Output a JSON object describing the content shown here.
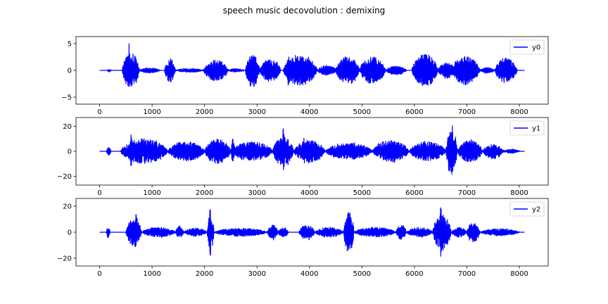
{
  "figure": {
    "title": "speech music decovolution : demixing"
  },
  "chart_data": [
    {
      "type": "line",
      "series": [
        {
          "name": "y0",
          "color": "#0000ff"
        }
      ],
      "x_range": [
        0,
        8100
      ],
      "xlim": [
        -450,
        8550
      ],
      "ylim": [
        -6.3,
        6.3
      ],
      "xticks": [
        0,
        1000,
        2000,
        3000,
        4000,
        5000,
        6000,
        7000,
        8000
      ],
      "yticks": [
        -5,
        0,
        5
      ],
      "legend": "top-right",
      "grid": false,
      "bursts": [
        {
          "x": [
            150,
            220
          ],
          "amp": 0.35
        },
        {
          "x": [
            430,
            760
          ],
          "amp": 3.4,
          "peak": 5.9,
          "peak_at": 560
        },
        {
          "x": [
            760,
            1150
          ],
          "amp": 0.55
        },
        {
          "x": [
            1240,
            1440
          ],
          "amp": 2.3
        },
        {
          "x": [
            1440,
            1980
          ],
          "amp": 0.45
        },
        {
          "x": [
            1980,
            2450
          ],
          "amp": 2.0
        },
        {
          "x": [
            2450,
            2750
          ],
          "amp": 0.4
        },
        {
          "x": [
            2780,
            3050
          ],
          "amp": 3.2
        },
        {
          "x": [
            3050,
            3450
          ],
          "amp": 2.2
        },
        {
          "x": [
            3500,
            4150
          ],
          "amp": 2.9,
          "peak": 3.4,
          "peak_at": 3600
        },
        {
          "x": [
            4150,
            4520
          ],
          "amp": 1.0
        },
        {
          "x": [
            4500,
            4950
          ],
          "amp": 2.7
        },
        {
          "x": [
            4950,
            5450
          ],
          "amp": 2.6
        },
        {
          "x": [
            5450,
            5850
          ],
          "amp": 0.9
        },
        {
          "x": [
            5950,
            6450
          ],
          "amp": 3.1
        },
        {
          "x": [
            6450,
            6780
          ],
          "amp": 1.6
        },
        {
          "x": [
            6700,
            7250
          ],
          "amp": 2.7
        },
        {
          "x": [
            7250,
            7530
          ],
          "amp": 0.6
        },
        {
          "x": [
            7530,
            7960
          ],
          "amp": 2.4
        }
      ]
    },
    {
      "type": "line",
      "series": [
        {
          "name": "y1",
          "color": "#0000ff"
        }
      ],
      "x_range": [
        0,
        8100
      ],
      "xlim": [
        -450,
        8550
      ],
      "ylim": [
        -27,
        27
      ],
      "xticks": [
        0,
        1000,
        2000,
        3000,
        4000,
        5000,
        6000,
        7000,
        8000
      ],
      "yticks": [
        -20,
        0,
        20
      ],
      "legend": "top-right",
      "grid": false,
      "bursts": [
        {
          "x": [
            130,
            220
          ],
          "amp": 3.5
        },
        {
          "x": [
            400,
            1300
          ],
          "amp": 10,
          "peak": 15,
          "peak_at": 600
        },
        {
          "x": [
            1300,
            2000
          ],
          "amp": 8
        },
        {
          "x": [
            2000,
            2500
          ],
          "amp": 10
        },
        {
          "x": [
            2500,
            3300
          ],
          "amp": 8,
          "peak": 12,
          "peak_at": 2540
        },
        {
          "x": [
            3300,
            3700
          ],
          "amp": 12,
          "peak": 22,
          "peak_at": 3500
        },
        {
          "x": [
            3700,
            4300
          ],
          "amp": 9,
          "peak": 13,
          "peak_at": 3900
        },
        {
          "x": [
            4300,
            5200
          ],
          "amp": 7
        },
        {
          "x": [
            5200,
            5900
          ],
          "amp": 9,
          "peak": 14,
          "peak_at": 5600
        },
        {
          "x": [
            5900,
            6600
          ],
          "amp": 8
        },
        {
          "x": [
            6600,
            6820
          ],
          "amp": 18,
          "peak": 24,
          "peak_at": 6720
        },
        {
          "x": [
            6820,
            7300
          ],
          "amp": 9
        },
        {
          "x": [
            7300,
            7700
          ],
          "amp": 6
        },
        {
          "x": [
            7700,
            8000
          ],
          "amp": 2
        }
      ]
    },
    {
      "type": "line",
      "series": [
        {
          "name": "y2",
          "color": "#0000ff"
        }
      ],
      "x_range": [
        0,
        8100
      ],
      "xlim": [
        -450,
        8550
      ],
      "ylim": [
        -26,
        26
      ],
      "xticks": [
        0,
        1000,
        2000,
        3000,
        4000,
        5000,
        6000,
        7000,
        8000
      ],
      "yticks": [
        -20,
        0,
        20
      ],
      "legend": "top-right",
      "grid": false,
      "bursts": [
        {
          "x": [
            130,
            200
          ],
          "amp": 5
        },
        {
          "x": [
            500,
            800
          ],
          "amp": 11,
          "peak": 19,
          "peak_at": 700
        },
        {
          "x": [
            800,
            1450
          ],
          "amp": 4
        },
        {
          "x": [
            1450,
            1600
          ],
          "amp": 5
        },
        {
          "x": [
            1600,
            2050
          ],
          "amp": 3.5
        },
        {
          "x": [
            2050,
            2180
          ],
          "amp": 14,
          "peak": 20,
          "peak_at": 2110
        },
        {
          "x": [
            2180,
            3200
          ],
          "amp": 3.5
        },
        {
          "x": [
            3200,
            3400
          ],
          "amp": 6
        },
        {
          "x": [
            3400,
            3600
          ],
          "amp": 4
        },
        {
          "x": [
            3800,
            4100
          ],
          "amp": 6
        },
        {
          "x": [
            4100,
            4650
          ],
          "amp": 4
        },
        {
          "x": [
            4650,
            4850
          ],
          "amp": 16,
          "peak": 21,
          "peak_at": 4730
        },
        {
          "x": [
            4850,
            5650
          ],
          "amp": 4
        },
        {
          "x": [
            5650,
            5850
          ],
          "amp": 6
        },
        {
          "x": [
            5850,
            6350
          ],
          "amp": 4
        },
        {
          "x": [
            6350,
            6700
          ],
          "amp": 14,
          "peak": 24,
          "peak_at": 6500
        },
        {
          "x": [
            6700,
            7000
          ],
          "amp": 4
        },
        {
          "x": [
            7000,
            7250
          ],
          "amp": 8
        },
        {
          "x": [
            7250,
            8000
          ],
          "amp": 3
        }
      ]
    }
  ]
}
